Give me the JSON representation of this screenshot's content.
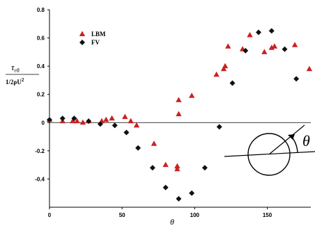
{
  "chart_data": {
    "type": "scatter",
    "xlabel": "θ",
    "ylabel": {
      "numerator_base": "τ",
      "numerator_sub": "rθ",
      "denominator": "1/2ρU",
      "denominator_sup": "2"
    },
    "xlim": [
      0,
      180
    ],
    "ylim": [
      -0.6,
      0.8
    ],
    "x_ticks": [
      "0",
      "50",
      "100",
      "150"
    ],
    "y_ticks": [
      "-0.4",
      "-0.2",
      "0",
      "0.2",
      "0.4",
      "0.6",
      "0.8"
    ],
    "grid": false,
    "legend_position": "top-left",
    "series": [
      {
        "name": "LBM",
        "marker": "triangle",
        "color": "#cc2020",
        "x": [
          0,
          9,
          16,
          19,
          23,
          27,
          36,
          39,
          43,
          52,
          56,
          60,
          72,
          80,
          88,
          88,
          89,
          89,
          98,
          115,
          120,
          121,
          123,
          133,
          138,
          148,
          153,
          155,
          169,
          179
        ],
        "y": [
          0.02,
          0.01,
          0.01,
          0.01,
          0.0,
          0.01,
          0.01,
          0.02,
          0.03,
          0.04,
          0.01,
          -0.02,
          -0.15,
          -0.3,
          -0.31,
          -0.33,
          0.06,
          0.16,
          0.19,
          0.34,
          0.38,
          0.4,
          0.54,
          0.52,
          0.62,
          0.5,
          0.53,
          0.54,
          0.55,
          0.38
        ]
      },
      {
        "name": "FV",
        "marker": "diamond",
        "color": "#111111",
        "x": [
          0,
          9,
          17,
          27,
          35,
          45,
          53,
          61,
          71,
          80,
          89,
          98,
          107,
          117,
          126,
          135,
          144,
          153,
          162,
          170
        ],
        "y": [
          0.02,
          0.03,
          0.03,
          0.01,
          -0.01,
          -0.02,
          -0.07,
          -0.18,
          -0.32,
          -0.46,
          -0.54,
          -0.5,
          -0.32,
          -0.03,
          0.28,
          0.51,
          0.64,
          0.65,
          0.52,
          0.31
        ]
      }
    ],
    "inset_label": "θ"
  }
}
